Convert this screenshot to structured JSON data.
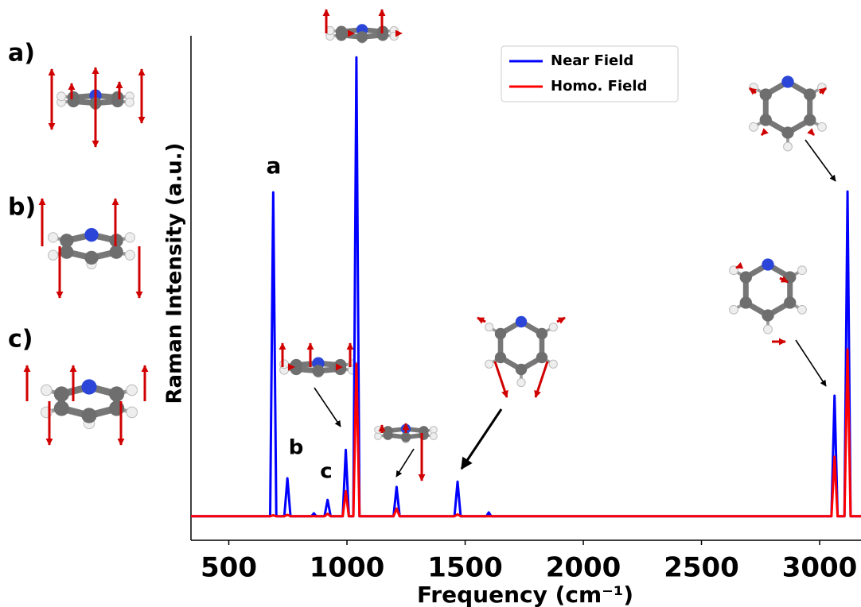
{
  "chart_data": {
    "type": "line",
    "xlabel": "Frequency (cm⁻¹)",
    "ylabel": "Raman Intensity (a.u.)",
    "x": [
      340,
      675,
      688,
      701,
      735,
      748,
      761,
      850,
      860,
      870,
      905,
      918,
      931,
      982,
      995,
      1008,
      1027,
      1040,
      1053,
      1197,
      1210,
      1223,
      1455,
      1468,
      1481,
      1590,
      1600,
      1610,
      3050,
      3063,
      3076,
      3105,
      3118,
      3131,
      3175
    ],
    "series": [
      {
        "name": "Near Field",
        "color": "#0000ff",
        "values": [
          0,
          0,
          0.674,
          0,
          0,
          0.079,
          0,
          0,
          0.006,
          0,
          0,
          0.034,
          0,
          0,
          0.138,
          0,
          0,
          0.955,
          0,
          0,
          0.061,
          0,
          0,
          0.072,
          0,
          0,
          0.008,
          0,
          0,
          0.251,
          0,
          0,
          0.676,
          0,
          0
        ]
      },
      {
        "name": "Homo. Field",
        "color": "#ff0000",
        "values": [
          0,
          0,
          0.002,
          0,
          0,
          0.003,
          0,
          0,
          0,
          0,
          0,
          0.005,
          0,
          0,
          0.052,
          0,
          0,
          0.317,
          0,
          0,
          0.016,
          0,
          0,
          0.004,
          0,
          0,
          0,
          0,
          0,
          0.124,
          0,
          0,
          0.347,
          0,
          0
        ]
      }
    ],
    "xlim": [
      340,
      3175
    ],
    "ylim": [
      -0.05,
      1.0
    ],
    "xticks": [
      500,
      1000,
      1500,
      2000,
      2500,
      3000
    ],
    "legend": "upper center",
    "annotations": [
      "a",
      "b",
      "c"
    ],
    "panel_labels": [
      "a)",
      "b)",
      "c)"
    ]
  }
}
